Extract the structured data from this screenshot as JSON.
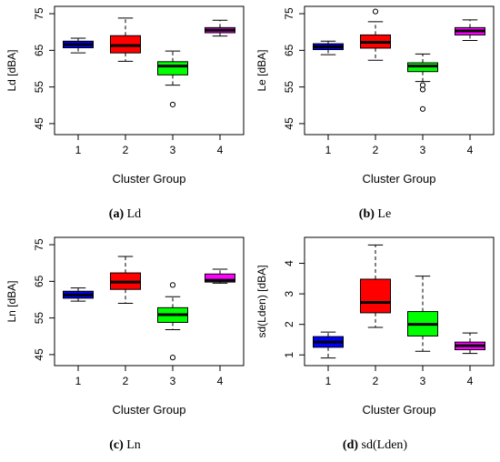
{
  "colors": {
    "group1": "#0000ff",
    "group2": "#ff0000",
    "group3": "#00ff00",
    "group4": "#ff00ff"
  },
  "chart_data": [
    {
      "type": "box",
      "letter": "(a)",
      "caption": "Ld",
      "xlabel": "Cluster Group",
      "ylabel": "Ld [dBA]",
      "categories": [
        "1",
        "2",
        "3",
        "4"
      ],
      "ylim": [
        42,
        77
      ],
      "yticks": [
        45,
        55,
        65,
        75
      ],
      "boxes": [
        {
          "group": "1",
          "whisker_low": 64.3,
          "q1": 65.7,
          "median": 66.6,
          "q3": 67.5,
          "whisker_high": 68.3,
          "outliers": []
        },
        {
          "group": "2",
          "whisker_low": 62.0,
          "q1": 64.3,
          "median": 66.3,
          "q3": 69.0,
          "whisker_high": 73.8,
          "outliers": []
        },
        {
          "group": "3",
          "whisker_low": 55.5,
          "q1": 58.3,
          "median": 60.7,
          "q3": 61.9,
          "whisker_high": 64.8,
          "outliers": [
            50.2
          ]
        },
        {
          "group": "4",
          "whisker_low": 68.9,
          "q1": 69.8,
          "median": 70.5,
          "q3": 71.2,
          "whisker_high": 73.2,
          "outliers": []
        }
      ]
    },
    {
      "type": "box",
      "letter": "(b)",
      "caption": "Le",
      "xlabel": "Cluster Group",
      "ylabel": "Le [dBA]",
      "categories": [
        "1",
        "2",
        "3",
        "4"
      ],
      "ylim": [
        42,
        77
      ],
      "yticks": [
        45,
        55,
        65,
        75
      ],
      "boxes": [
        {
          "group": "1",
          "whisker_low": 63.8,
          "q1": 65.2,
          "median": 66.0,
          "q3": 66.8,
          "whisker_high": 67.5,
          "outliers": []
        },
        {
          "group": "2",
          "whisker_low": 62.3,
          "q1": 65.6,
          "median": 67.2,
          "q3": 69.2,
          "whisker_high": 72.8,
          "outliers": [
            75.6
          ]
        },
        {
          "group": "3",
          "whisker_low": 56.5,
          "q1": 59.2,
          "median": 60.7,
          "q3": 61.6,
          "whisker_high": 64.0,
          "outliers": [
            55.5,
            54.3,
            49.0
          ]
        },
        {
          "group": "4",
          "whisker_low": 67.7,
          "q1": 69.2,
          "median": 70.3,
          "q3": 71.2,
          "whisker_high": 73.3,
          "outliers": []
        }
      ]
    },
    {
      "type": "box",
      "letter": "(c)",
      "caption": "Ln",
      "xlabel": "Cluster Group",
      "ylabel": "Ln [dBA]",
      "categories": [
        "1",
        "2",
        "3",
        "4"
      ],
      "ylim": [
        42,
        77
      ],
      "yticks": [
        45,
        55,
        65,
        75
      ],
      "boxes": [
        {
          "group": "1",
          "whisker_low": 59.6,
          "q1": 60.4,
          "median": 61.3,
          "q3": 62.3,
          "whisker_high": 63.2,
          "outliers": []
        },
        {
          "group": "2",
          "whisker_low": 59.0,
          "q1": 62.8,
          "median": 64.8,
          "q3": 67.3,
          "whisker_high": 71.8,
          "outliers": []
        },
        {
          "group": "3",
          "whisker_low": 51.8,
          "q1": 53.8,
          "median": 55.9,
          "q3": 57.8,
          "whisker_high": 60.8,
          "outliers": [
            64.0,
            44.2
          ]
        },
        {
          "group": "4",
          "whisker_low": 64.5,
          "q1": 64.8,
          "median": 65.3,
          "q3": 67.0,
          "whisker_high": 68.3,
          "outliers": []
        }
      ]
    },
    {
      "type": "box",
      "letter": "(d)",
      "caption": "sd(Lden)",
      "xlabel": "Cluster Group",
      "ylabel": "sd(Lden) [dBA]",
      "categories": [
        "1",
        "2",
        "3",
        "4"
      ],
      "ylim": [
        0.65,
        4.85
      ],
      "yticks": [
        1,
        2,
        3,
        4
      ],
      "boxes": [
        {
          "group": "1",
          "whisker_low": 0.9,
          "q1": 1.25,
          "median": 1.42,
          "q3": 1.6,
          "whisker_high": 1.75,
          "outliers": []
        },
        {
          "group": "2",
          "whisker_low": 1.9,
          "q1": 2.38,
          "median": 2.72,
          "q3": 3.48,
          "whisker_high": 4.6,
          "outliers": []
        },
        {
          "group": "3",
          "whisker_low": 1.12,
          "q1": 1.62,
          "median": 2.0,
          "q3": 2.42,
          "whisker_high": 3.58,
          "outliers": []
        },
        {
          "group": "4",
          "whisker_low": 1.05,
          "q1": 1.17,
          "median": 1.3,
          "q3": 1.42,
          "whisker_high": 1.72,
          "outliers": []
        }
      ]
    }
  ]
}
